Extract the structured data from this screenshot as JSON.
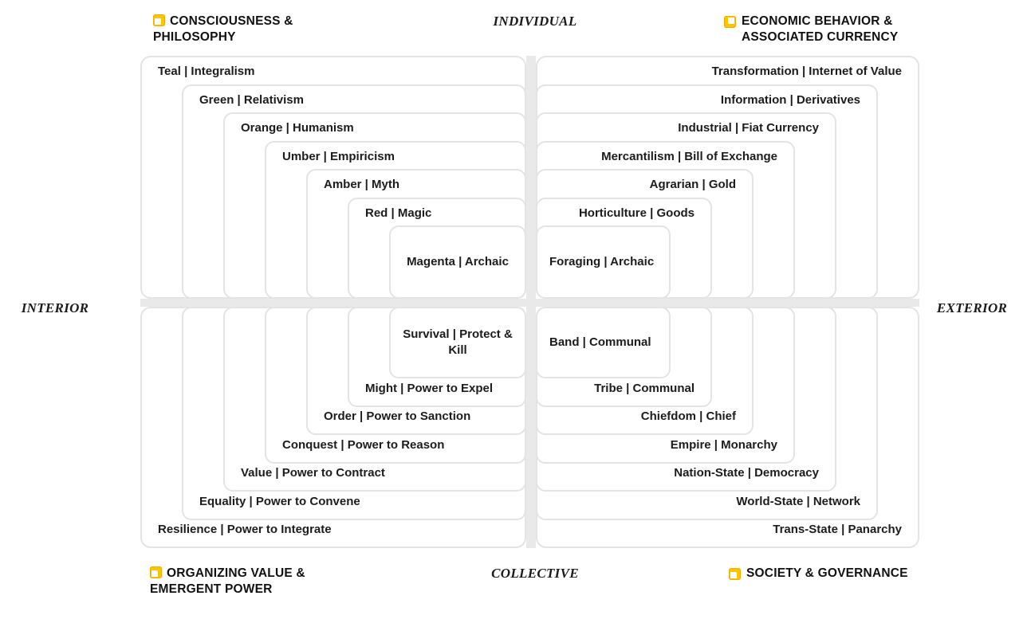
{
  "axes": {
    "top": "INDIVIDUAL",
    "bottom": "COLLECTIVE",
    "left": "INTERIOR",
    "right": "EXTERIOR"
  },
  "corners": {
    "top_left": {
      "label": "CONSCIOUSNESS & PHILOSOPHY",
      "icon": "yellow-note"
    },
    "top_right": {
      "label": "ECONOMIC BEHAVIOR & ASSOCIATED CURRENCY",
      "icon": "yellow-note"
    },
    "bottom_left": {
      "label": "ORGANIZING VALUE & EMERGENT POWER",
      "icon": "yellow-note"
    },
    "bottom_right": {
      "label": "SOCIETY & GOVERNANCE",
      "icon": "yellow-note"
    }
  },
  "quadrants": {
    "tl": {
      "title": "CONSCIOUSNESS & PHILOSOPHY",
      "levels": [
        "Teal | Integralism",
        "Green | Relativism",
        "Orange | Humanism",
        "Umber | Empiricism",
        "Amber | Myth",
        "Red | Magic",
        "Magenta | Archaic"
      ]
    },
    "tr": {
      "title": "ECONOMIC BEHAVIOR & ASSOCIATED CURRENCY",
      "levels": [
        "Transformation | Internet of Value",
        "Information | Derivatives",
        "Industrial | Fiat Currency",
        "Mercantilism | Bill of Exchange",
        "Agrarian | Gold",
        "Horticulture | Goods",
        "Foraging | Archaic"
      ]
    },
    "bl": {
      "title": "ORGANIZING VALUE & EMERGENT POWER",
      "levels": [
        "Resilience | Power to Integrate",
        "Equality | Power to Convene",
        "Value | Power to Contract",
        "Conquest | Power to Reason",
        "Order | Power to Sanction",
        "Might | Power to Expel",
        "Survival | Protect & Kill"
      ]
    },
    "br": {
      "title": "SOCIETY & GOVERNANCE",
      "levels": [
        "Trans-State | Panarchy",
        "World-State | Network",
        "Nation-State | Democracy",
        "Empire | Monarchy",
        "Chiefdom | Chief",
        "Tribe | Communal",
        "Band | Communal"
      ]
    }
  },
  "colors": {
    "accent_yellow": "#fdc402",
    "box_border": "#e4e4e4",
    "gap_gray": "#e9e9e9",
    "text": "#1c1c1c"
  }
}
